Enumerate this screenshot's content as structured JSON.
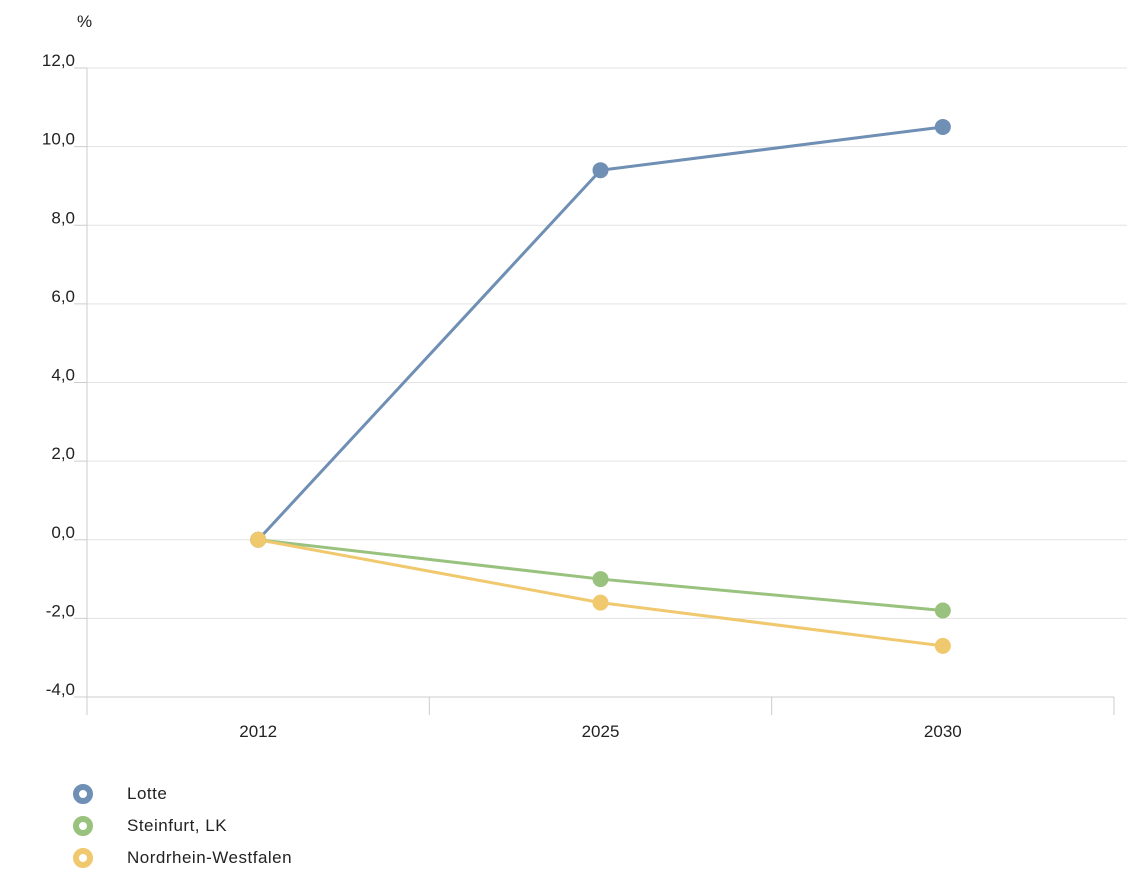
{
  "chart_data": {
    "type": "line",
    "y_unit": "%",
    "categories": [
      "2012",
      "2025",
      "2030"
    ],
    "ylim": [
      -4.0,
      12.0
    ],
    "yticks": [
      -4.0,
      -2.0,
      0.0,
      2.0,
      4.0,
      6.0,
      8.0,
      10.0,
      12.0
    ],
    "ytick_labels": [
      "-4,0",
      "-2,0",
      "0,0",
      "2,0",
      "4,0",
      "6,0",
      "8,0",
      "10,0",
      "12,0"
    ],
    "grid": true,
    "legend_position": "bottom-left",
    "series": [
      {
        "name": "Lotte",
        "color": "#6f8fb4",
        "values": [
          0.0,
          9.4,
          10.5
        ]
      },
      {
        "name": "Steinfurt, LK",
        "color": "#99c27e",
        "values": [
          0.0,
          -1.0,
          -1.8
        ]
      },
      {
        "name": "Nordrhein-Westfalen",
        "color": "#f0c86e",
        "values": [
          0.0,
          -1.6,
          -2.7
        ]
      }
    ]
  }
}
